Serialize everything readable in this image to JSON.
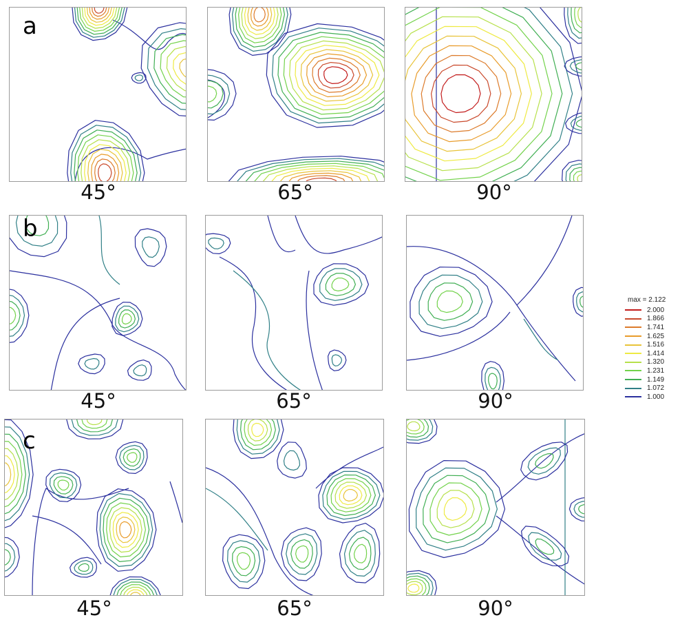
{
  "row_labels": [
    "a",
    "b",
    "c"
  ],
  "angle_labels": [
    "45°",
    "65°",
    "90°"
  ],
  "legend": {
    "title": "max = 2.122",
    "levels": [
      {
        "value": "2.000",
        "color": "#c21a1a"
      },
      {
        "value": "1.866",
        "color": "#c9482a"
      },
      {
        "value": "1.741",
        "color": "#dc7a2a"
      },
      {
        "value": "1.625",
        "color": "#e89b2a"
      },
      {
        "value": "1.516",
        "color": "#e8c338"
      },
      {
        "value": "1.414",
        "color": "#eeea42"
      },
      {
        "value": "1.320",
        "color": "#b6e04a"
      },
      {
        "value": "1.231",
        "color": "#72d24a"
      },
      {
        "value": "1.149",
        "color": "#3fae52"
      },
      {
        "value": "1.072",
        "color": "#2f7f86"
      },
      {
        "value": "1.000",
        "color": "#2a2f9e"
      }
    ]
  },
  "chart_data": {
    "type": "contour",
    "rows": [
      "a",
      "b",
      "c"
    ],
    "columns": [
      "45°",
      "65°",
      "90°"
    ],
    "contour_levels": [
      2.0,
      1.866,
      1.741,
      1.625,
      1.516,
      1.414,
      1.32,
      1.231,
      1.149,
      1.072,
      1.0
    ],
    "max": 2.122
  }
}
